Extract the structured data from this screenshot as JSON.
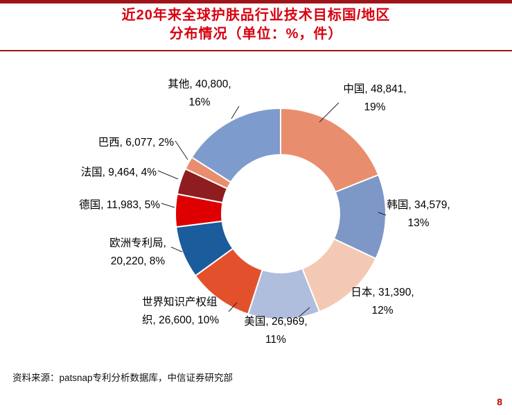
{
  "header": {
    "title_line1": "近20年来全球护肤品行业技术目标国/地区",
    "title_line2": "分布情况（单位：%，件）",
    "accent_color": "#9E1418",
    "title_color": "#D7000F"
  },
  "chart_data": {
    "type": "pie",
    "subtype": "donut",
    "title": "近20年来全球护肤品行业技术目标国/地区分布情况",
    "unit": "单位：%，件",
    "order": "clockwise-from-top",
    "slices": [
      {
        "key": "china",
        "name": "中国",
        "value": 48841,
        "pct": 19,
        "color": "#E88E6E",
        "label_lines": [
          "中国, 48,841,",
          "19%"
        ]
      },
      {
        "key": "korea",
        "name": "韩国",
        "value": 34579,
        "pct": 13,
        "color": "#7D97C6",
        "label_lines": [
          "韩国, 34,579,",
          "13%"
        ]
      },
      {
        "key": "japan",
        "name": "日本",
        "value": 31390,
        "pct": 12,
        "color": "#F4C9B3",
        "label_lines": [
          "日本, 31,390,",
          "12%"
        ]
      },
      {
        "key": "usa",
        "name": "美国",
        "value": 26969,
        "pct": 11,
        "color": "#AFBEDD",
        "label_lines": [
          "美国, 26,969,",
          "11%"
        ]
      },
      {
        "key": "wipo",
        "name": "世界知识产权组织",
        "value": 26600,
        "pct": 10,
        "color": "#E2512C",
        "label_lines": [
          "世界知识产权组",
          "织, 26,600, 10%"
        ]
      },
      {
        "key": "epo",
        "name": "欧洲专利局",
        "value": 20220,
        "pct": 8,
        "color": "#1A5C9C",
        "label_lines": [
          "欧洲专利局,",
          "20,220, 8%"
        ]
      },
      {
        "key": "germany",
        "name": "德国",
        "value": 11983,
        "pct": 5,
        "color": "#DE0000",
        "label_lines": [
          "德国, 11,983, 5%"
        ]
      },
      {
        "key": "france",
        "name": "法国",
        "value": 9464,
        "pct": 4,
        "color": "#8F1D20",
        "label_lines": [
          "法国, 9,464, 4%"
        ]
      },
      {
        "key": "brazil",
        "name": "巴西",
        "value": 6077,
        "pct": 2,
        "color": "#E88E6E",
        "label_lines": [
          "巴西, 6,077, 2%"
        ]
      },
      {
        "key": "other",
        "name": "其他",
        "value": 40800,
        "pct": 16,
        "color": "#7E9BCD",
        "label_lines": [
          "其他, 40,800,",
          "16%"
        ]
      }
    ]
  },
  "footer": {
    "source": "资料来源：patsnap专利分析数据库，中信证券研究部",
    "page": "8"
  }
}
